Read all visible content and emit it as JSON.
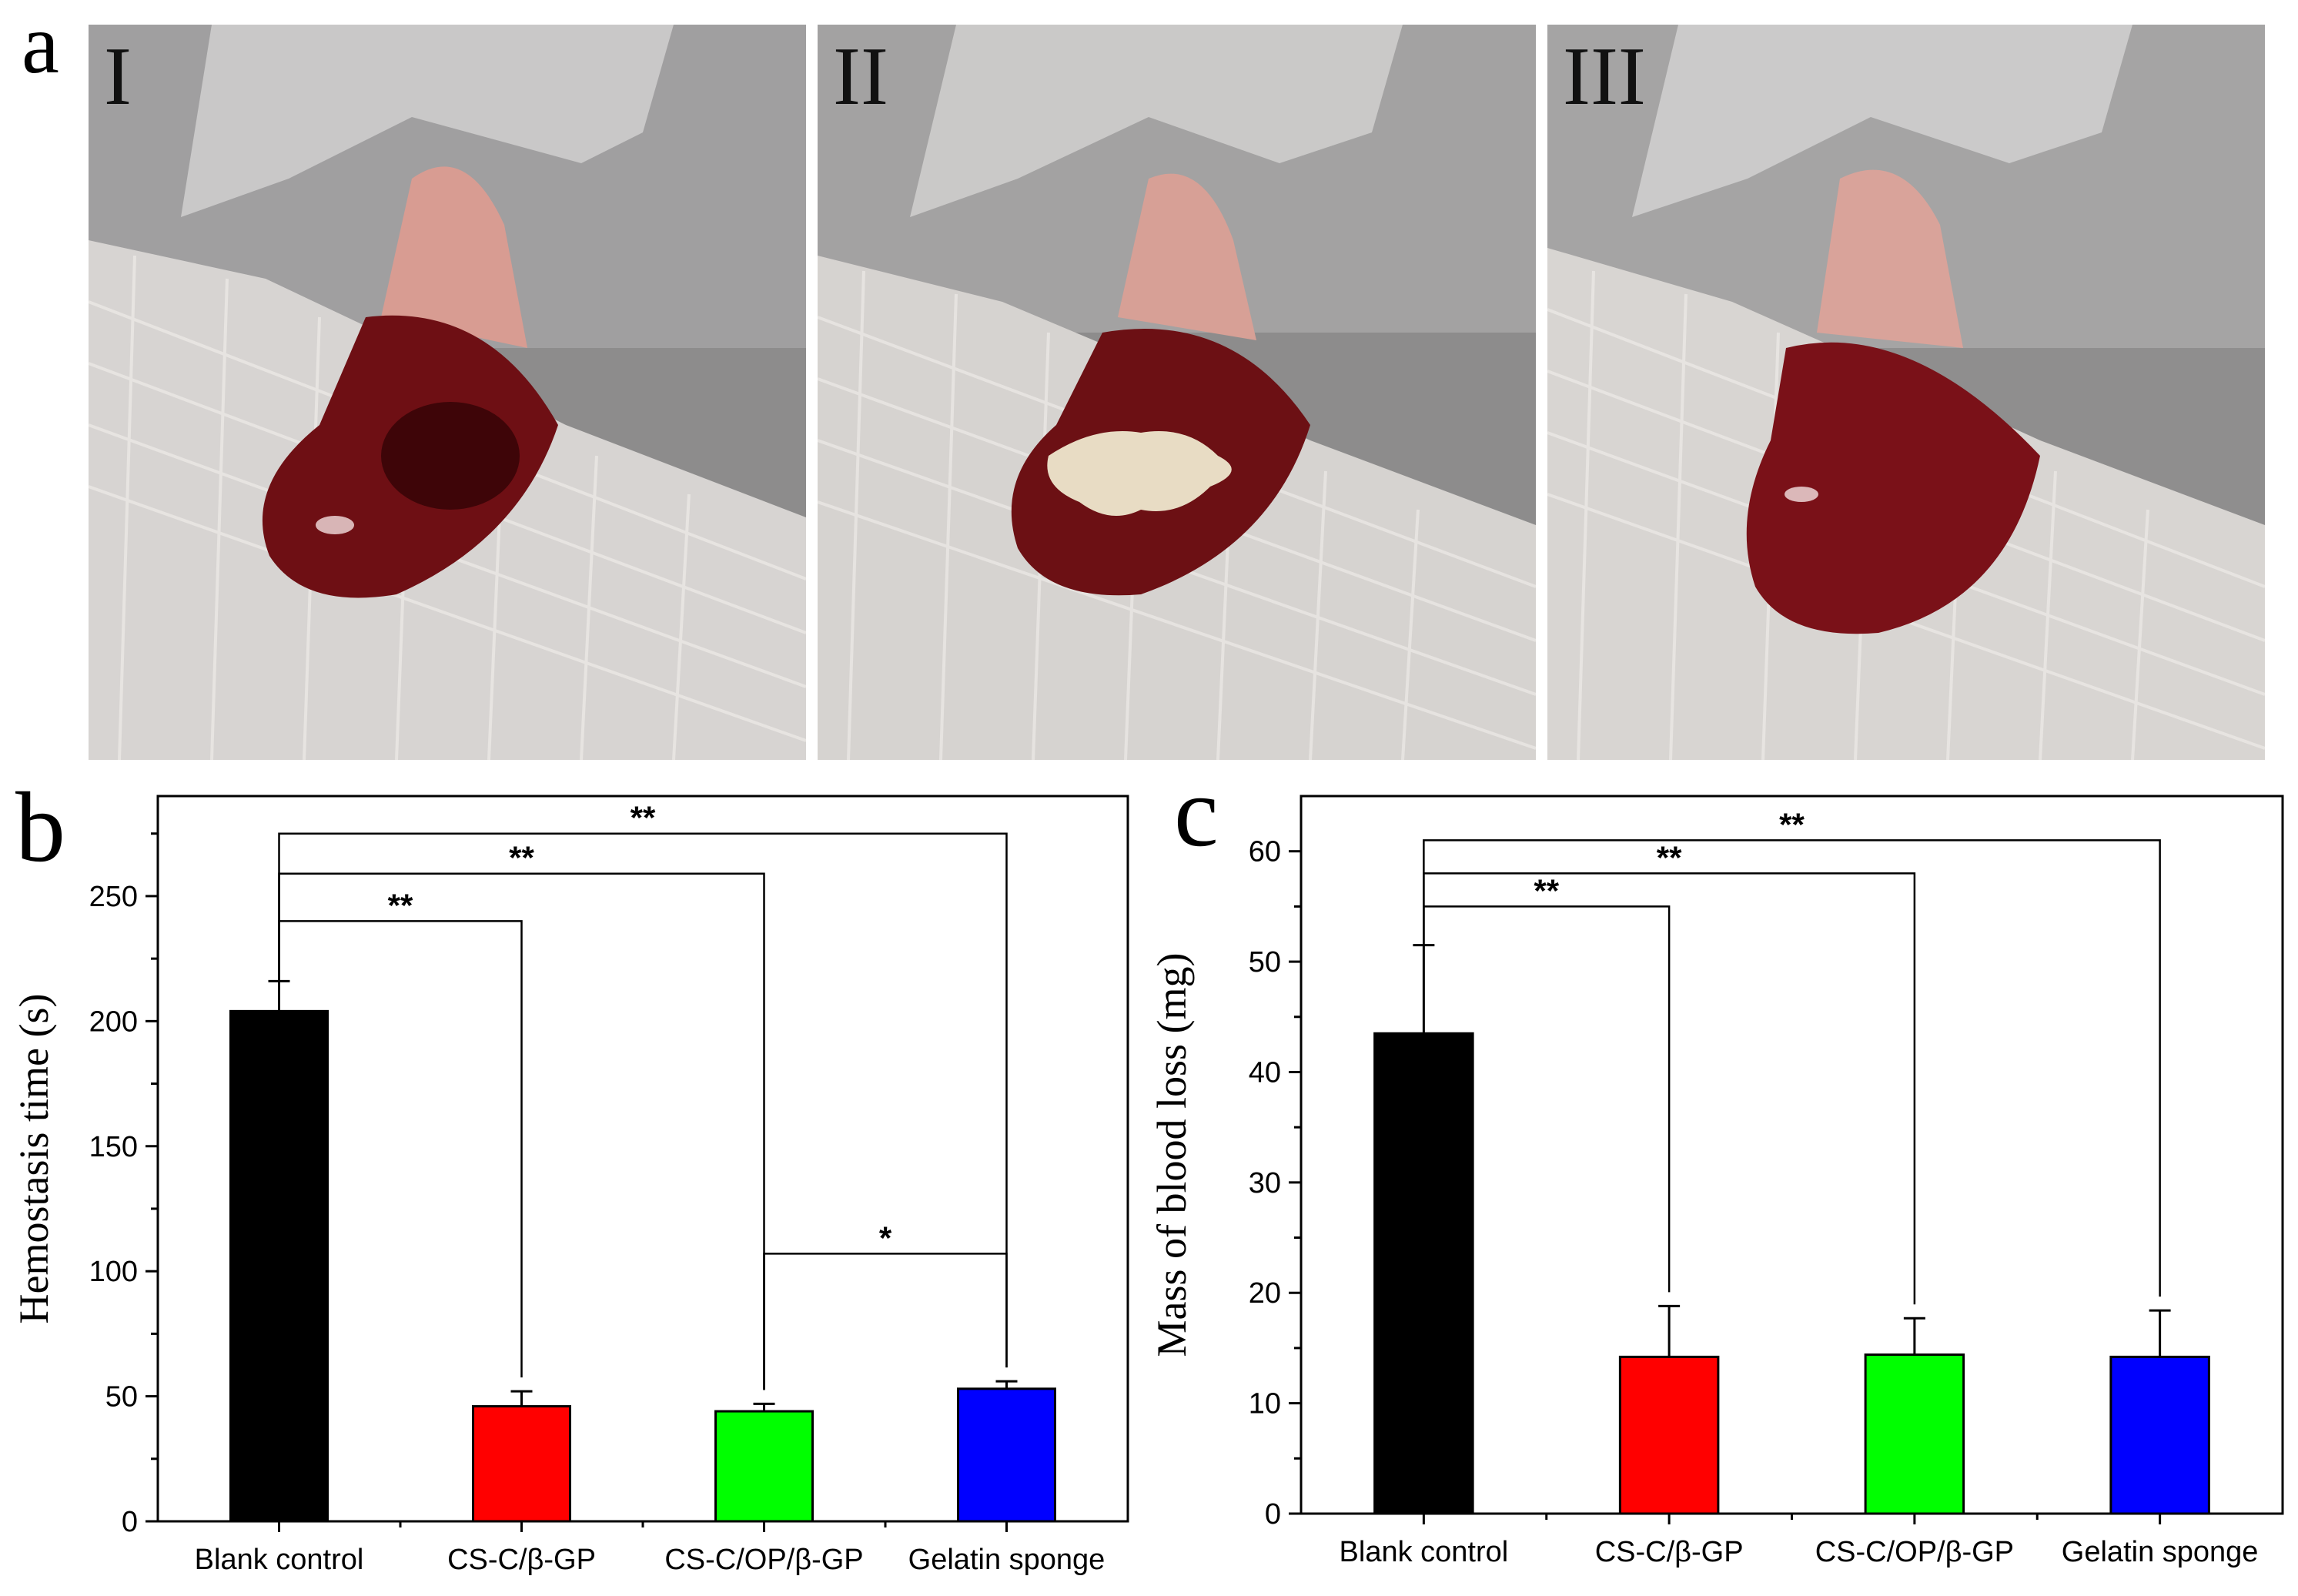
{
  "panels": {
    "a": "a",
    "b": "b",
    "c": "c"
  },
  "photos": [
    {
      "label": "I"
    },
    {
      "label": "II"
    },
    {
      "label": "III"
    }
  ],
  "colors": {
    "blank": "#000000",
    "cs_c": "#ff0000",
    "cs_c_op": "#00ff00",
    "gelatin": "#0000ff"
  },
  "chart_data": [
    {
      "type": "bar",
      "panel": "b",
      "categories": [
        "Blank control",
        "CS-C/β-GP",
        "CS-C/OP/β-GP",
        "Gelatin sponge"
      ],
      "values": [
        204,
        46,
        44,
        53
      ],
      "errors": [
        12,
        6,
        3,
        3
      ],
      "colors": [
        "#000000",
        "#ff0000",
        "#00ff00",
        "#0000ff"
      ],
      "title": "",
      "xlabel": "",
      "ylabel": "Hemostasis time (s)",
      "ylim": [
        0,
        290
      ],
      "yticks": [
        0,
        50,
        100,
        150,
        200,
        250
      ],
      "significance": [
        {
          "from": 0,
          "to": 1,
          "y": 240,
          "label": "**"
        },
        {
          "from": 0,
          "to": 2,
          "y": 259,
          "label": "**"
        },
        {
          "from": 0,
          "to": 3,
          "y": 275,
          "label": "**"
        },
        {
          "from": 2,
          "to": 3,
          "y": 107,
          "label": "*"
        }
      ]
    },
    {
      "type": "bar",
      "panel": "c",
      "categories": [
        "Blank control",
        "CS-C/β-GP",
        "CS-C/OP/β-GP",
        "Gelatin sponge"
      ],
      "values": [
        43.5,
        14.2,
        14.4,
        14.2
      ],
      "errors": [
        8.0,
        4.6,
        3.3,
        4.2
      ],
      "colors": [
        "#000000",
        "#ff0000",
        "#00ff00",
        "#0000ff"
      ],
      "title": "",
      "xlabel": "",
      "ylabel": "Mass of blood loss (mg)",
      "ylim": [
        0,
        65
      ],
      "yticks": [
        0,
        10,
        20,
        30,
        40,
        50,
        60
      ],
      "significance": [
        {
          "from": 0,
          "to": 1,
          "y": 55,
          "label": "**"
        },
        {
          "from": 0,
          "to": 2,
          "y": 58,
          "label": "**"
        },
        {
          "from": 0,
          "to": 3,
          "y": 61,
          "label": "**"
        }
      ]
    }
  ]
}
